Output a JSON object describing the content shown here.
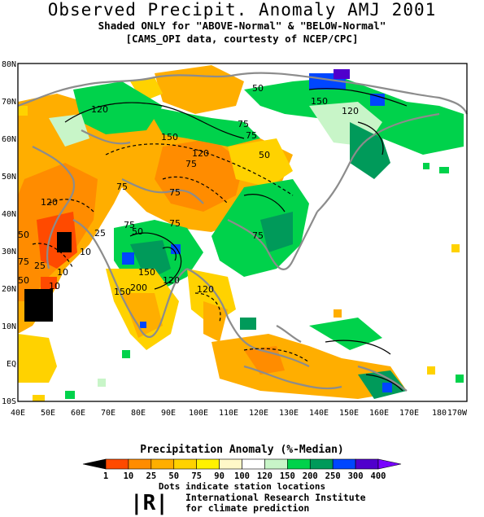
{
  "header": {
    "title": "Observed Precipit. Anomaly AMJ 2001",
    "subtitle1": "Shaded ONLY for \"ABOVE-Normal\" & \"BELOW-Normal\"",
    "subtitle2": "[CAMS_OPI data, courtesty of NCEP/CPC]"
  },
  "map": {
    "lat_labels": [
      "80N",
      "70N",
      "60N",
      "50N",
      "40N",
      "30N",
      "20N",
      "10N",
      "EQ",
      "10S"
    ],
    "lon_labels": [
      "40E",
      "50E",
      "60E",
      "70E",
      "80E",
      "90E",
      "100E",
      "110E",
      "120E",
      "130E",
      "140E",
      "150E",
      "160E",
      "170E",
      "180",
      "170W"
    ],
    "contour_labels": [
      "50",
      "120",
      "150",
      "75",
      "120",
      "150",
      "120",
      "75",
      "75",
      "50",
      "75",
      "120",
      "75",
      "75",
      "75",
      "25",
      "75",
      "50",
      "50",
      "10",
      "25",
      "10",
      "10",
      "150",
      "200",
      "120",
      "75",
      "50",
      "150",
      "120"
    ],
    "extent": {
      "lon": [
        40,
        190
      ],
      "lat": [
        -10,
        80
      ]
    }
  },
  "legend": {
    "title": "Precipitation Anomaly (%-Median)",
    "tick_labels": [
      "1",
      "10",
      "25",
      "50",
      "75",
      "90",
      "100",
      "120",
      "150",
      "200",
      "250",
      "300",
      "400"
    ],
    "colors": [
      "#000000",
      "#ff4a00",
      "#ff8c00",
      "#ffae00",
      "#ffd200",
      "#fff200",
      "#fff8c8",
      "#ffffff",
      "#c8f5c8",
      "#00d24b",
      "#009a5a",
      "#0046ff",
      "#5000cc",
      "#7800ff"
    ],
    "note": "Dots indicate station locations"
  },
  "footer": {
    "logo": "|R|",
    "org_line1": "International Research Institute",
    "org_line2": "for climate prediction"
  }
}
